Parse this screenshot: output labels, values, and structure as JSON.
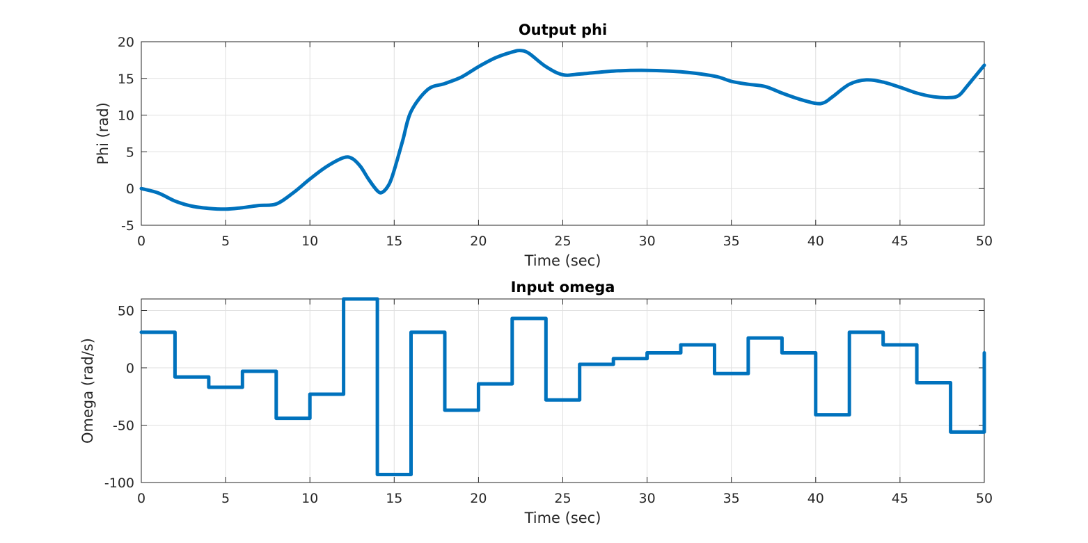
{
  "chart_data": [
    {
      "type": "line",
      "title": "Output phi",
      "xlabel": "Time (sec)",
      "ylabel": "Phi (rad)",
      "xlim": [
        0,
        50
      ],
      "ylim": [
        -5,
        20
      ],
      "xticks": [
        0,
        5,
        10,
        15,
        20,
        25,
        30,
        35,
        40,
        45,
        50
      ],
      "yticks": [
        -5,
        0,
        5,
        10,
        15,
        20
      ],
      "grid": true,
      "line_color": "#0072BD",
      "series": [
        {
          "step": false,
          "x": [
            0,
            1,
            2,
            3,
            4,
            5,
            6,
            7,
            8,
            9,
            10,
            11,
            12,
            12.5,
            13,
            13.5,
            14,
            14.3,
            14.7,
            15,
            15.5,
            16,
            17,
            18,
            19,
            20,
            21,
            22,
            22.5,
            23,
            24,
            25,
            26,
            28,
            30,
            32,
            34,
            35,
            36,
            37,
            38,
            39,
            40,
            40.5,
            41,
            42,
            43,
            44,
            45,
            46,
            47,
            48,
            48.5,
            49,
            50
          ],
          "y": [
            0,
            -0.6,
            -1.7,
            -2.4,
            -2.7,
            -2.8,
            -2.6,
            -2.3,
            -2.1,
            -0.6,
            1.3,
            3.0,
            4.2,
            4.1,
            3.0,
            1.2,
            -0.3,
            -0.5,
            0.6,
            2.5,
            6.5,
            10.5,
            13.5,
            14.3,
            15.2,
            16.6,
            17.8,
            18.6,
            18.8,
            18.4,
            16.6,
            15.5,
            15.6,
            16.0,
            16.1,
            15.9,
            15.3,
            14.6,
            14.2,
            13.9,
            13.0,
            12.2,
            11.6,
            11.7,
            12.5,
            14.2,
            14.8,
            14.5,
            13.8,
            13.0,
            12.5,
            12.4,
            12.7,
            14.0,
            16.8
          ]
        }
      ]
    },
    {
      "type": "line",
      "title": "Input omega",
      "xlabel": "Time (sec)",
      "ylabel": "Omega (rad/s)",
      "xlim": [
        0,
        50
      ],
      "ylim": [
        -100,
        60
      ],
      "xticks": [
        0,
        5,
        10,
        15,
        20,
        25,
        30,
        35,
        40,
        45,
        50
      ],
      "yticks": [
        -100,
        -50,
        0,
        50
      ],
      "grid": true,
      "line_color": "#0072BD",
      "series": [
        {
          "step": true,
          "x": [
            0,
            2,
            4,
            6,
            8,
            10,
            12,
            14,
            16,
            18,
            20,
            22,
            24,
            26,
            28,
            30,
            32,
            34,
            36,
            38,
            40,
            42,
            44,
            46,
            48,
            50
          ],
          "y": [
            31,
            -8,
            -17,
            -3,
            -44,
            -23,
            60,
            -93,
            31,
            -37,
            -14,
            43,
            -28,
            3,
            8,
            13,
            20,
            -5,
            26,
            13,
            -41,
            31,
            20,
            -13,
            -56,
            13
          ]
        }
      ]
    }
  ]
}
